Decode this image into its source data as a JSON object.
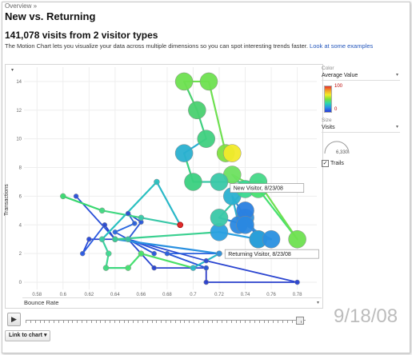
{
  "breadcrumb": "Overview »",
  "page_title": "New vs. Returning",
  "subtitle": "141,078 visits from 2 visitor types",
  "description": "The Motion Chart lets you visualize your data across multiple dimensions so you can spot interesting trends faster.",
  "description_link": "Look at some examples",
  "side": {
    "color_label": "Color",
    "color_value": "Average Value",
    "color_max": "100",
    "color_min": "0",
    "size_label": "Size",
    "size_value": "Visits",
    "size_number": "6,330",
    "trails_label": "Trails"
  },
  "controls": {
    "play": "▶",
    "date": "9/18/08",
    "link_to_chart": "Link to chart ▾",
    "y_select_arrow": "▾",
    "x_select_arrow": "▾"
  },
  "chart_data": {
    "type": "scatter",
    "xlabel": "Bounce Rate",
    "ylabel": "Transactions",
    "x_ticks": [
      "0.58",
      "0.6",
      "0.62",
      "0.64",
      "0.66",
      "0.68",
      "0.7",
      "0.72",
      "0.74",
      "0.76",
      "0.78"
    ],
    "y_ticks": [
      "0",
      "2",
      "4",
      "6",
      "8",
      "10",
      "12",
      "14"
    ],
    "xlim": [
      0.57,
      0.795
    ],
    "ylim": [
      -0.5,
      15
    ],
    "tooltips": [
      {
        "label": "New Visitor, 8/23/08",
        "x": 0.726,
        "y": 6.6
      },
      {
        "label": "Returning Visitor, 8/23/08",
        "x": 0.722,
        "y": 2.0
      }
    ],
    "trails": [
      {
        "name": "Returning Visitor",
        "points": [
          [
            0.61,
            6.0
          ],
          [
            0.64,
            3.0
          ],
          [
            0.62,
            3.0
          ],
          [
            0.615,
            2.0
          ],
          [
            0.632,
            4.0
          ],
          [
            0.64,
            3.0
          ],
          [
            0.65,
            3.0
          ],
          [
            0.67,
            2.0
          ],
          [
            0.64,
            3.5
          ],
          [
            0.655,
            4.1
          ],
          [
            0.65,
            4.8
          ],
          [
            0.66,
            4.2
          ],
          [
            0.65,
            3.0
          ],
          [
            0.67,
            1.0
          ],
          [
            0.71,
            1.0
          ],
          [
            0.71,
            0.0
          ],
          [
            0.78,
            0.0
          ],
          [
            0.71,
            1.5
          ],
          [
            0.65,
            3.0
          ],
          [
            0.71,
            1.0
          ],
          [
            0.68,
            2.0
          ],
          [
            0.72,
            2.0
          ]
        ],
        "colors": [
          "#2a50d8",
          "#2a44d0",
          "#2a4ad8",
          "#2a5ae0",
          "#2a4ad0",
          "#2a50d8",
          "#2a60e0",
          "#2a58d8",
          "#2a68e0",
          "#2a60d8",
          "#2a50d0",
          "#2a58d8",
          "#2a48d0",
          "#2a44cc",
          "#2a3ac8",
          "#2a40cc",
          "#2a44d0",
          "#2a4cd4",
          "#2a50d8",
          "#2a58d8",
          "#2a60dc",
          "#f0a03a"
        ]
      },
      {
        "name": "New Visitor",
        "points": [
          [
            0.6,
            6.0
          ],
          [
            0.63,
            5.0
          ],
          [
            0.66,
            4.5
          ],
          [
            0.69,
            4.0
          ],
          [
            0.672,
            7.0
          ],
          [
            0.63,
            3.0
          ],
          [
            0.635,
            2.0
          ],
          [
            0.633,
            1.0
          ],
          [
            0.65,
            1.0
          ],
          [
            0.66,
            2.0
          ],
          [
            0.7,
            1.0
          ],
          [
            0.72,
            2.0
          ],
          [
            0.64,
            3.0
          ],
          [
            0.65,
            3.0
          ],
          [
            0.64,
            3.0
          ],
          [
            0.72,
            3.5
          ],
          [
            0.75,
            3.0
          ],
          [
            0.74,
            4.5
          ],
          [
            0.73,
            6.0
          ],
          [
            0.735,
            4.0
          ],
          [
            0.74,
            5.0
          ],
          [
            0.75,
            3.0
          ],
          [
            0.76,
            3.0
          ],
          [
            0.74,
            4.0
          ],
          [
            0.72,
            4.5
          ],
          [
            0.74,
            6.5
          ],
          [
            0.73,
            7.5
          ],
          [
            0.75,
            6.5
          ],
          [
            0.78,
            3.0
          ],
          [
            0.75,
            7.0
          ],
          [
            0.72,
            7.0
          ],
          [
            0.7,
            7.0
          ],
          [
            0.693,
            9.0
          ],
          [
            0.71,
            10.0
          ],
          [
            0.703,
            12.0
          ],
          [
            0.693,
            14.0
          ],
          [
            0.712,
            14.0
          ],
          [
            0.725,
            9.0
          ],
          [
            0.73,
            9.0
          ]
        ],
        "colors": [
          "#3ad870",
          "#42d882",
          "#3ac8a8",
          "#2ab8c8",
          "#2ac0c0",
          "#3ad0a0",
          "#40d890",
          "#40d880",
          "#46e070",
          "#4ae068",
          "#2ab8c8",
          "#2a90e0",
          "#2a80e0",
          "#3ac8a0",
          "#3ad090",
          "#2aa0e0",
          "#2a80e0",
          "#2a90e0",
          "#2ab0d0",
          "#2a88e0",
          "#2a80e0",
          "#2aa0d8",
          "#2a90e0",
          "#2a88e0",
          "#3ac8a8",
          "#3ad890",
          "#6ee060",
          "#46e070",
          "#6ee050",
          "#46d888",
          "#3ac8a8",
          "#3ad080",
          "#2ab0d0",
          "#40d080",
          "#4ad070",
          "#6ee050",
          "#6ee050",
          "#80e040",
          "#f2ea2a"
        ]
      }
    ],
    "highlight": {
      "x": 0.69,
      "y": 4.0,
      "color": "#e02a2a"
    }
  }
}
